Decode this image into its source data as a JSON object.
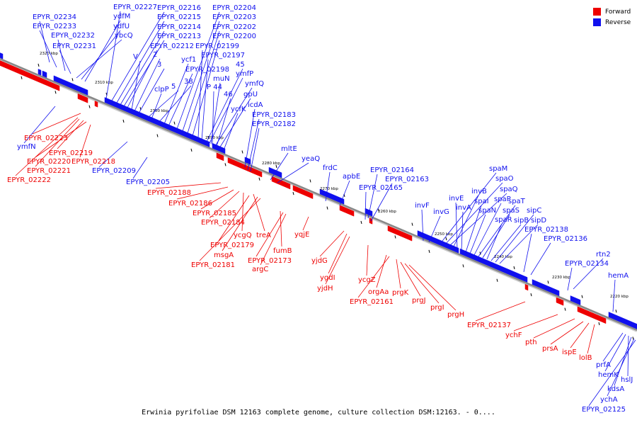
{
  "caption": "Erwinia pyrifoliae DSM 12163 complete genome, culture collection DSM:12163. - 0....",
  "colors": {
    "forward": "#ee0000",
    "reverse": "#1010ee",
    "backbone": "#888888",
    "tick": "#000000"
  },
  "legend": [
    {
      "label": "Forward",
      "color": "#ee0000"
    },
    {
      "label": "Reverse",
      "color": "#1010ee"
    }
  ],
  "kbp_marks": [
    "2320 kbp",
    "2310 kbp",
    "2300 kbp",
    "2290 kbp",
    "2280 kbp",
    "2270 kbp",
    "2260 kbp",
    "2250 kbp",
    "2240 kbp",
    "2230 kbp",
    "2220 kbp"
  ],
  "reverse_labels": [
    "EPYR_02234",
    "EPYR_02233",
    "EPYR_02232",
    "EPYR_02231",
    "ybcQ",
    "ydfU",
    "ydfM",
    "EPYR_02227",
    "EPYR_02216",
    "EPYR_02215",
    "EPYR_02214",
    "EPYR_02213",
    "EPYR_02212",
    "V",
    "2",
    "3",
    "5",
    "clpP",
    "38",
    "ycf1",
    "EPYR_02198",
    "EPYR_02204",
    "EPYR_02203",
    "EPYR_02202",
    "EPYR_02200",
    "EPYR_02199",
    "EPYR_02197",
    "45",
    "ymfP",
    "muN",
    "P 44",
    "ymfQ",
    "46",
    "gpU",
    "ycfK",
    "icdA",
    "EPYR_02183",
    "EPYR_02182",
    "mltE",
    "yeaQ",
    "frdC",
    "apbE",
    "EPYR_02164",
    "EPYR_02163",
    "EPYR_02165",
    "spaM",
    "spaO",
    "spaQ",
    "invB",
    "invE",
    "invF",
    "invG",
    "invA",
    "spaI",
    "spaN",
    "spaP",
    "spaT",
    "spaS",
    "spaR",
    "sipB",
    "sipC",
    "sipD",
    "EPYR_02138",
    "EPYR_02136",
    "rtn2",
    "EPYR_02134",
    "hemA",
    "ymfN",
    "EPYR_02209",
    "EPYR_02205",
    "prfA",
    "hemK",
    "hslJ",
    "kdsA",
    "ychA",
    "EPYR_02125"
  ],
  "forward_labels": [
    "EPYR_02223",
    "EPYR_02219",
    "EPYR_02220",
    "EPYR_02218",
    "EPYR_02221",
    "EPYR_02222",
    "EPYR_02188",
    "EPYR_02186",
    "EPYR_02185",
    "EPYR_02184",
    "ycgQ",
    "EPYR_02179",
    "treA",
    "msgA",
    "EPYR_02181",
    "fumB",
    "EPYR_02173",
    "argC",
    "yqjE",
    "yjdG",
    "ygdI",
    "yjdH",
    "ycgZ",
    "orgAa",
    "EPYR_02161",
    "prgK",
    "prgJ",
    "prgI",
    "prgH",
    "EPYR_02137",
    "ychF",
    "pth",
    "prsA",
    "ispE",
    "lolB"
  ]
}
